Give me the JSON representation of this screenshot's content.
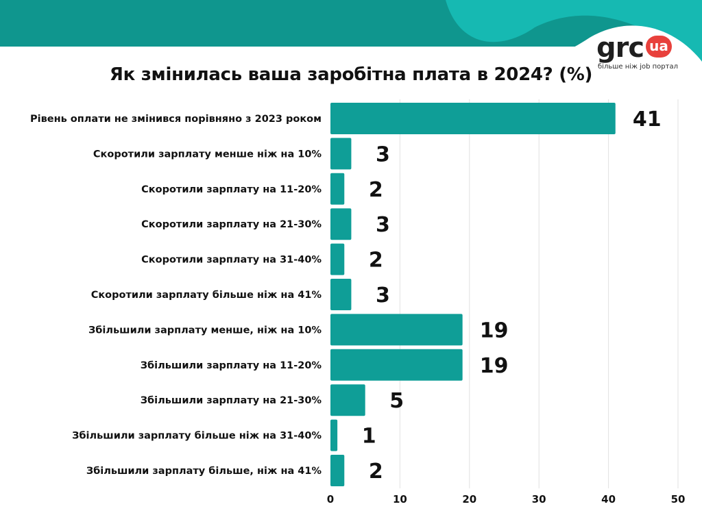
{
  "colors": {
    "bar": "#0f9e97",
    "header_band": "#0f968e",
    "header_wave_light": "#16b9b2",
    "gridline": "#e2e2e2",
    "logo_badge": "#e8413c"
  },
  "logo": {
    "text": "grc",
    "badge": "ua",
    "tagline": "більше ніж job портал"
  },
  "chart_data": {
    "type": "bar",
    "orientation": "horizontal",
    "title": "Як змінилась ваша заробітна плата в 2024? (%)",
    "categories": [
      "Рівень оплати не змінився порівняно з 2023 роком",
      "Скоротили зарплату менше ніж на 10%",
      "Скоротили зарплату на 11-20%",
      "Скоротили зарплату на 21-30%",
      "Скоротили зарплату на 31-40%",
      "Скоротили зарплату більше ніж на 41%",
      "Збільшили зарплату менше, ніж на 10%",
      "Збільшили зарплату на 11-20%",
      "Збільшили зарплату на 21-30%",
      "Збільшили зарплату більше ніж на 31-40%",
      "Збільшили зарплату більше, ніж на 41%"
    ],
    "values": [
      41,
      3,
      2,
      3,
      2,
      3,
      19,
      19,
      5,
      1,
      2
    ],
    "xlim": [
      0,
      50
    ],
    "xticks": [
      0,
      10,
      20,
      30,
      40,
      50
    ],
    "grid": true,
    "legend": "none"
  }
}
